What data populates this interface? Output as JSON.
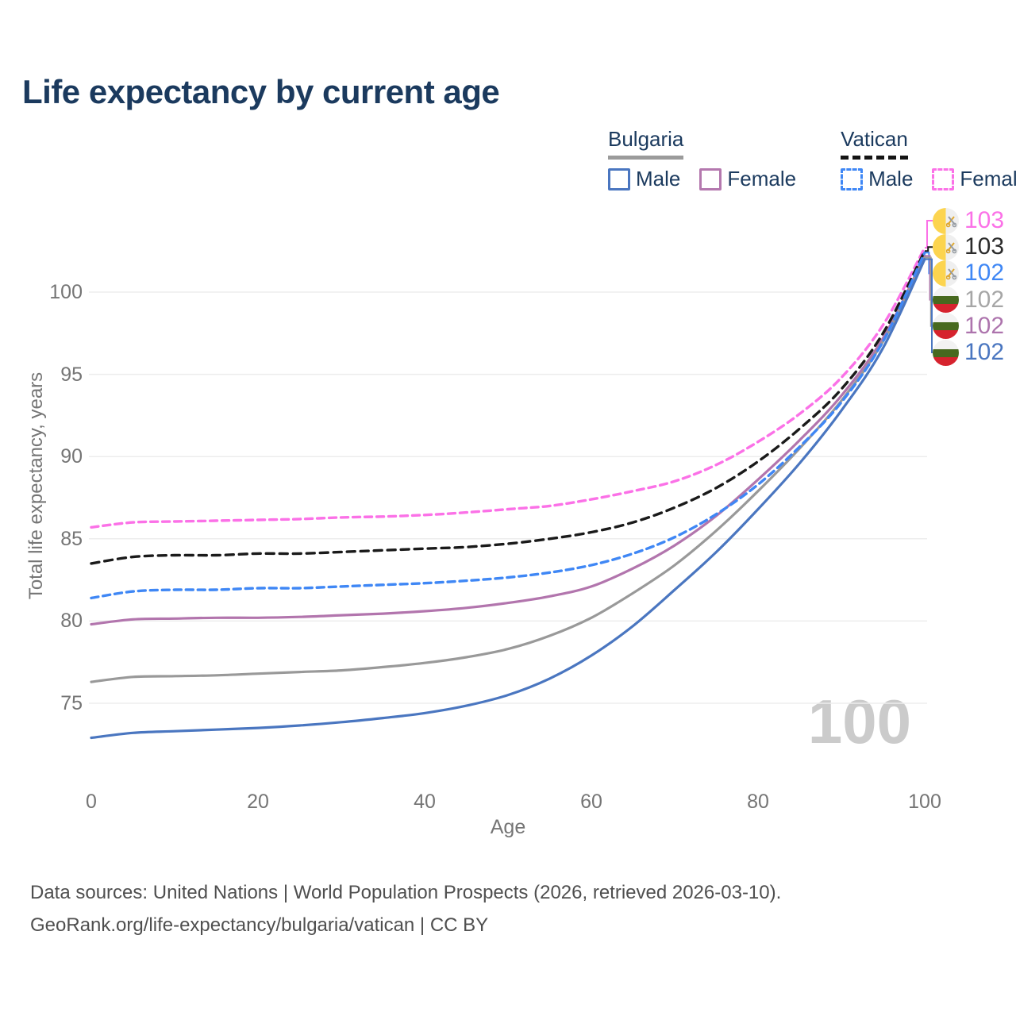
{
  "title": "Life expectancy by current age",
  "legend": {
    "groups": [
      {
        "label": "Bulgaria",
        "line_style": "solid",
        "items": [
          {
            "label": "Male",
            "color": "#4a76c0"
          },
          {
            "label": "Female",
            "color": "#b478ae"
          }
        ]
      },
      {
        "label": "Vatican",
        "line_style": "dashed",
        "items": [
          {
            "label": "Male",
            "color": "#3f87f5"
          },
          {
            "label": "Female",
            "color": "#fb71e7"
          }
        ]
      }
    ]
  },
  "chart_data": {
    "type": "line",
    "title": "Life expectancy by current age",
    "xlabel": "Age",
    "ylabel": "Total life expectancy, years",
    "x": [
      0,
      5,
      10,
      15,
      20,
      25,
      30,
      35,
      40,
      45,
      50,
      55,
      60,
      65,
      70,
      75,
      80,
      85,
      90,
      95,
      100
    ],
    "xticks": [
      0,
      20,
      40,
      60,
      80,
      100
    ],
    "yticks": [
      75,
      80,
      85,
      90,
      95,
      100
    ],
    "xlim": [
      0,
      100
    ],
    "ylim": [
      72,
      104
    ],
    "grid": true,
    "legend_position": "top-right",
    "series": [
      {
        "name": "Vatican Female",
        "country": "Vatican",
        "sex": "Female",
        "color": "#fb71e7",
        "dashed": true,
        "values": [
          85.7,
          86.0,
          86.05,
          86.1,
          86.15,
          86.2,
          86.3,
          86.35,
          86.45,
          86.6,
          86.8,
          87.0,
          87.4,
          87.9,
          88.5,
          89.5,
          90.9,
          92.6,
          94.8,
          98.0,
          102.7
        ]
      },
      {
        "name": "Vatican (both sexes)",
        "country": "Vatican",
        "sex": "All",
        "color": "#1a1a1a",
        "dashed": true,
        "values": [
          83.5,
          83.9,
          84.0,
          84.0,
          84.1,
          84.1,
          84.2,
          84.3,
          84.4,
          84.5,
          84.7,
          85.0,
          85.4,
          86.0,
          86.9,
          88.1,
          89.7,
          91.7,
          94.1,
          97.5,
          102.5
        ]
      },
      {
        "name": "Vatican Male",
        "country": "Vatican",
        "sex": "Male",
        "color": "#3f87f5",
        "dashed": true,
        "values": [
          81.4,
          81.8,
          81.9,
          81.9,
          82.0,
          82.0,
          82.1,
          82.2,
          82.3,
          82.45,
          82.65,
          82.95,
          83.4,
          84.1,
          85.1,
          86.5,
          88.3,
          90.6,
          93.3,
          97.0,
          102.4
        ]
      },
      {
        "name": "Bulgaria Female",
        "country": "Bulgaria",
        "sex": "Female",
        "color": "#b275ad",
        "dashed": false,
        "values": [
          79.8,
          80.1,
          80.15,
          80.2,
          80.2,
          80.25,
          80.35,
          80.45,
          80.6,
          80.8,
          81.1,
          81.5,
          82.1,
          83.2,
          84.6,
          86.4,
          88.6,
          91.0,
          93.7,
          97.2,
          102.2
        ]
      },
      {
        "name": "Bulgaria (both sexes)",
        "country": "Bulgaria",
        "sex": "All",
        "color": "#999999",
        "dashed": false,
        "values": [
          76.3,
          76.6,
          76.65,
          76.7,
          76.8,
          76.9,
          77.0,
          77.2,
          77.45,
          77.8,
          78.3,
          79.1,
          80.2,
          81.7,
          83.4,
          85.5,
          87.9,
          90.5,
          93.4,
          97.0,
          102.1
        ]
      },
      {
        "name": "Bulgaria Male",
        "country": "Bulgaria",
        "sex": "Male",
        "color": "#4a76c0",
        "dashed": false,
        "values": [
          72.9,
          73.2,
          73.3,
          73.4,
          73.5,
          73.65,
          73.85,
          74.1,
          74.4,
          74.85,
          75.5,
          76.5,
          77.9,
          79.7,
          81.9,
          84.2,
          86.8,
          89.6,
          92.8,
          96.6,
          102.0
        ]
      }
    ],
    "end_labels": [
      {
        "value": "103",
        "color": "#fb71e7",
        "flag": "vatican"
      },
      {
        "value": "103",
        "color": "#2b2b2b",
        "flag": "vatican"
      },
      {
        "value": "102",
        "color": "#3f87f5",
        "flag": "vatican"
      },
      {
        "value": "102",
        "color": "#a6a6a6",
        "flag": "bulgaria"
      },
      {
        "value": "102",
        "color": "#ad74ad",
        "flag": "bulgaria"
      },
      {
        "value": "102",
        "color": "#4a76c0",
        "flag": "bulgaria"
      }
    ]
  },
  "watermark": "100",
  "footer": {
    "line1": "Data sources: United Nations | World Population Prospects (2026, retrieved 2026-03-10).",
    "line2": "GeoRank.org/life-expectancy/bulgaria/vatican | CC BY"
  }
}
